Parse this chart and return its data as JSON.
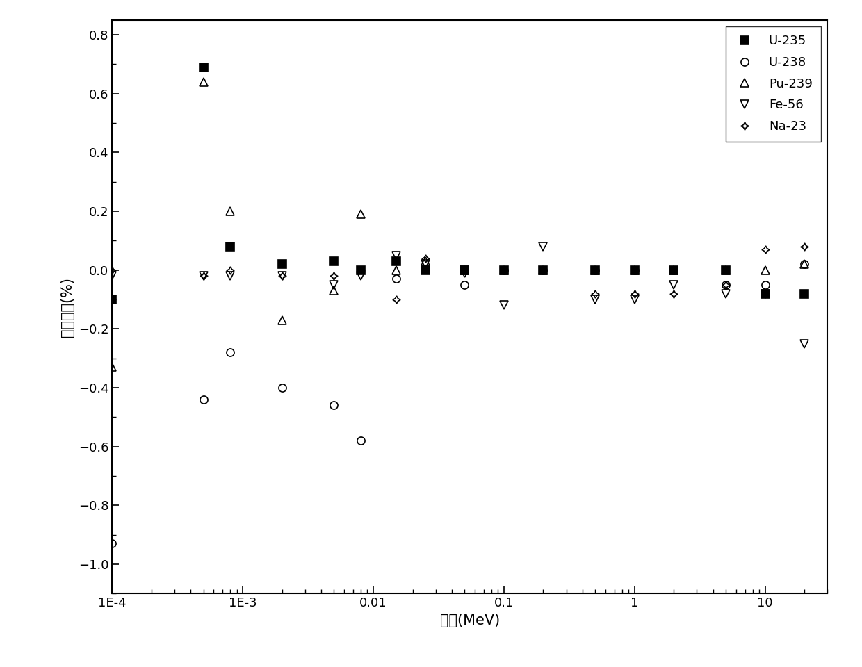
{
  "title": "",
  "xlabel": "能量(MeV)",
  "ylabel": "相对误差(%)",
  "xlim": [
    0.0001,
    30
  ],
  "ylim": [
    -1.1,
    0.85
  ],
  "yticks": [
    -1.0,
    -0.8,
    -0.6,
    -0.4,
    -0.2,
    0.0,
    0.2,
    0.4,
    0.6,
    0.8
  ],
  "series": [
    {
      "label": "U-235",
      "marker": "s",
      "fillstyle": "full",
      "markersize": 8,
      "x": [
        0.0001,
        0.0005,
        0.0008,
        0.002,
        0.005,
        0.008,
        0.015,
        0.025,
        0.05,
        0.1,
        0.2,
        0.5,
        1.0,
        2.0,
        5.0,
        10.0,
        20.0
      ],
      "y": [
        -0.1,
        0.69,
        0.08,
        0.02,
        0.03,
        0.0,
        0.03,
        0.0,
        0.0,
        0.0,
        0.0,
        0.0,
        0.0,
        0.0,
        0.0,
        -0.08,
        -0.08
      ]
    },
    {
      "label": "U-238",
      "marker": "o",
      "fillstyle": "none",
      "markersize": 8,
      "x": [
        0.0001,
        0.0005,
        0.0008,
        0.002,
        0.005,
        0.008,
        0.015,
        0.05,
        0.1,
        0.2,
        0.5,
        1.0,
        2.0,
        5.0,
        10.0,
        20.0
      ],
      "y": [
        -0.93,
        -0.44,
        -0.28,
        -0.4,
        -0.46,
        -0.58,
        -0.03,
        -0.05,
        0.0,
        0.0,
        0.0,
        0.0,
        0.0,
        -0.05,
        -0.05,
        0.02
      ]
    },
    {
      "label": "Pu-239",
      "marker": "^",
      "fillstyle": "none",
      "markersize": 8,
      "x": [
        0.0001,
        0.0005,
        0.0008,
        0.002,
        0.005,
        0.008,
        0.015,
        0.025,
        0.05,
        0.1,
        0.2,
        0.5,
        1.0,
        2.0,
        5.0,
        10.0,
        20.0
      ],
      "y": [
        -0.33,
        0.64,
        0.2,
        -0.17,
        -0.07,
        0.19,
        0.0,
        0.03,
        0.0,
        0.0,
        0.0,
        0.0,
        0.0,
        0.0,
        0.0,
        0.0,
        0.02
      ]
    },
    {
      "label": "Fe-56",
      "marker": "v",
      "fillstyle": "none",
      "markersize": 8,
      "x": [
        0.0001,
        0.0005,
        0.0008,
        0.002,
        0.005,
        0.008,
        0.015,
        0.025,
        0.05,
        0.1,
        0.2,
        0.5,
        1.0,
        2.0,
        5.0,
        10.0,
        20.0
      ],
      "y": [
        -0.02,
        -0.02,
        -0.02,
        -0.02,
        -0.05,
        -0.02,
        0.05,
        0.02,
        0.0,
        -0.12,
        0.08,
        -0.1,
        -0.1,
        -0.05,
        -0.08,
        -0.08,
        -0.25
      ]
    },
    {
      "label": "Na-23",
      "marker": "P",
      "fillstyle": "none",
      "markersize": 8,
      "x": [
        0.0001,
        0.0005,
        0.0008,
        0.002,
        0.005,
        0.008,
        0.015,
        0.025,
        0.05,
        0.1,
        0.2,
        0.5,
        1.0,
        2.0,
        5.0,
        10.0,
        20.0
      ],
      "y": [
        0.0,
        -0.02,
        0.0,
        -0.02,
        -0.02,
        0.0,
        -0.1,
        0.04,
        -0.01,
        0.0,
        0.0,
        -0.08,
        -0.08,
        -0.08,
        -0.05,
        0.07,
        0.08
      ]
    }
  ],
  "legend_loc": "upper right",
  "background_color": "#ffffff",
  "font_size": 14
}
